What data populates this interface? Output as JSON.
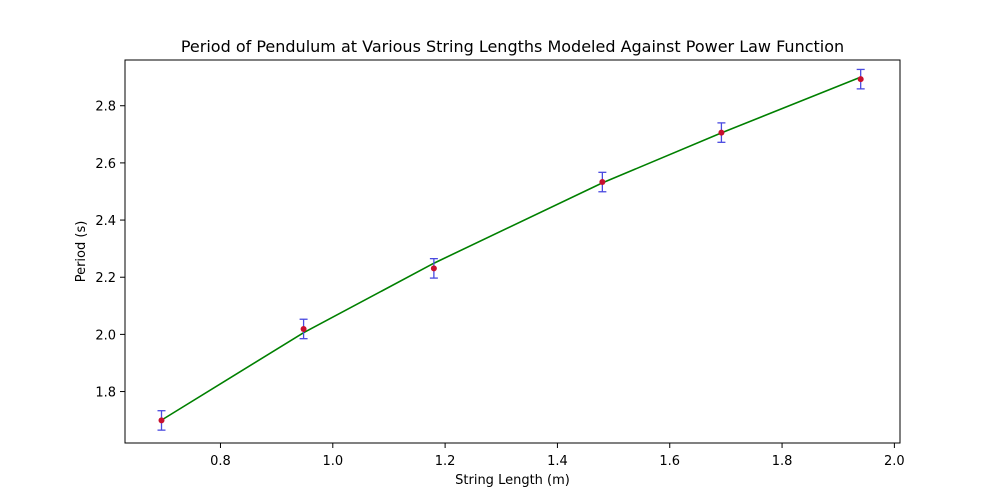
{
  "chart_data": {
    "type": "scatter",
    "title": "Period of Pendulum at Various String Lengths Modeled Against Power Law Function",
    "xlabel": "String Length (m)",
    "ylabel": "Period (s)",
    "xlim": [
      0.63,
      2.01
    ],
    "ylim": [
      1.62,
      2.96
    ],
    "xticks": [
      0.8,
      1.0,
      1.2,
      1.4,
      1.6,
      1.8,
      2.0
    ],
    "yticks": [
      1.8,
      2.0,
      2.2,
      2.4,
      2.6,
      2.8
    ],
    "xtick_labels": [
      "0.8",
      "1.0",
      "1.2",
      "1.4",
      "1.6",
      "1.8",
      "2.0"
    ],
    "ytick_labels": [
      "1.8",
      "2.0",
      "2.2",
      "2.4",
      "2.6",
      "2.8"
    ],
    "grid": false,
    "series": [
      {
        "kind": "measured-points",
        "x": [
          0.695,
          0.948,
          1.18,
          1.48,
          1.692,
          1.94
        ],
        "y": [
          1.699,
          2.019,
          2.231,
          2.533,
          2.706,
          2.893
        ],
        "yerr": [
          0.034,
          0.034,
          0.034,
          0.034,
          0.034,
          0.034
        ],
        "marker_color": "#c8102e",
        "errorbar_color": "#4a4ae0"
      },
      {
        "kind": "fit-line",
        "x": [
          0.695,
          0.948,
          1.18,
          1.48,
          1.692,
          1.94
        ],
        "y": [
          1.7,
          2.006,
          2.249,
          2.53,
          2.705,
          2.9
        ],
        "color": "#008000"
      }
    ]
  }
}
